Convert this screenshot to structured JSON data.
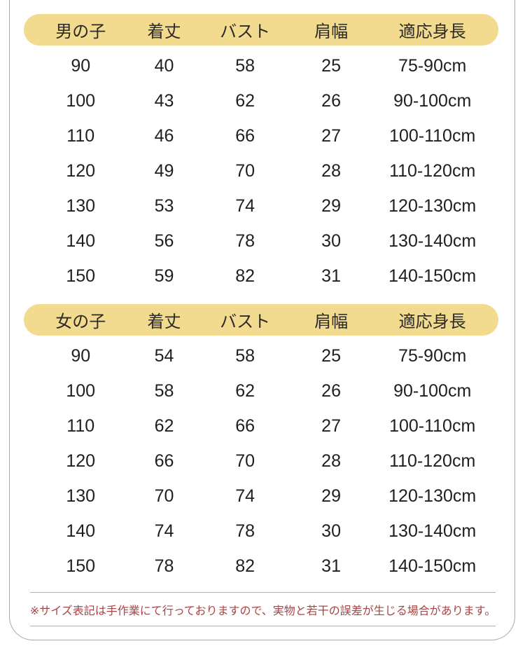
{
  "chart_data": [
    {
      "type": "table",
      "title": "男の子",
      "headers": [
        "男の子",
        "着丈",
        "バスト",
        "肩幅",
        "適応身長"
      ],
      "rows": [
        [
          "90",
          "40",
          "58",
          "25",
          "75-90cm"
        ],
        [
          "100",
          "43",
          "62",
          "26",
          "90-100cm"
        ],
        [
          "110",
          "46",
          "66",
          "27",
          "100-110cm"
        ],
        [
          "120",
          "49",
          "70",
          "28",
          "110-120cm"
        ],
        [
          "130",
          "53",
          "74",
          "29",
          "120-130cm"
        ],
        [
          "140",
          "56",
          "78",
          "30",
          "130-140cm"
        ],
        [
          "150",
          "59",
          "82",
          "31",
          "140-150cm"
        ]
      ]
    },
    {
      "type": "table",
      "title": "女の子",
      "headers": [
        "女の子",
        "着丈",
        "バスト",
        "肩幅",
        "適応身長"
      ],
      "rows": [
        [
          "90",
          "54",
          "58",
          "25",
          "75-90cm"
        ],
        [
          "100",
          "58",
          "62",
          "26",
          "90-100cm"
        ],
        [
          "110",
          "62",
          "66",
          "27",
          "100-110cm"
        ],
        [
          "120",
          "66",
          "70",
          "28",
          "110-120cm"
        ],
        [
          "130",
          "70",
          "74",
          "29",
          "120-130cm"
        ],
        [
          "140",
          "74",
          "78",
          "30",
          "130-140cm"
        ],
        [
          "150",
          "78",
          "82",
          "31",
          "140-150cm"
        ]
      ]
    }
  ],
  "note": {
    "text": "※サイズ表記は手作業にて行っておりますので、実物と若干の誤差が生じる場合があります。"
  },
  "colors": {
    "header_pill_bg": "#F2DA8E",
    "table_text": "#1f1f1f",
    "note_text": "#A94444",
    "divider_line": "#b0b0b0",
    "sheet_border": "#a8a8a8",
    "background": "#ffffff"
  }
}
